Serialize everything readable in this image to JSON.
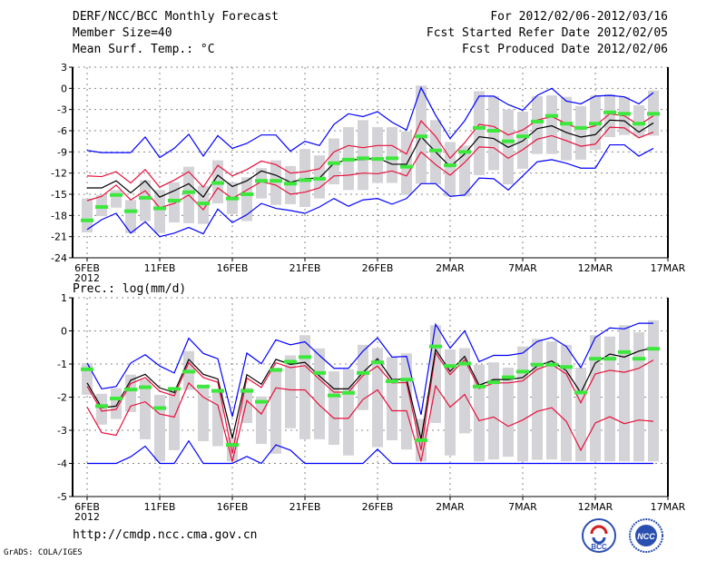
{
  "header": {
    "title": "DERF/NCC/BCC Monthly Forecast",
    "member_size": "Member Size=40",
    "variable": "Mean Surf. Temp.: °C",
    "period": "For 2012/02/06-2012/03/16",
    "started": "Fcst Started Refer Date 2012/02/05",
    "produced": "Fcst Produced Date 2012/02/06"
  },
  "footer": {
    "url": "http://cmdp.ncc.cma.gov.cn",
    "credit": "GrADS: COLA/IGES",
    "logos": [
      "BCC",
      "NCC"
    ]
  },
  "colors": {
    "mean": "#000000",
    "spread": "#e8103c",
    "extreme": "#0000ff",
    "obs": "#3ce83c",
    "box": "#d4d4d8"
  },
  "chart_data": [
    {
      "type": "line",
      "title": "Mean Surf. Temp.: °C",
      "xlabel": "",
      "ylabel": "°C",
      "ylim": [
        -24,
        3
      ],
      "yticks": [
        3,
        0,
        -3,
        -6,
        -9,
        -12,
        -15,
        -18,
        -21,
        -24
      ],
      "x_tick_labels": [
        "6FEB",
        "11FEB",
        "16FEB",
        "21FEB",
        "26FEB",
        "2MAR",
        "7MAR",
        "12MAR",
        "17MAR"
      ],
      "x_year_label": "2012",
      "x_range_days": [
        0,
        40
      ],
      "grid": true,
      "series": {
        "mean": [
          -14.1,
          -14.1,
          -13.1,
          -14.8,
          -13.1,
          -15.4,
          -14.5,
          -13.5,
          -15.4,
          -12.3,
          -13.9,
          -13.1,
          -11.7,
          -12.3,
          -13.3,
          -12.8,
          -12.7,
          -10.6,
          -10.1,
          -10.1,
          -9.85,
          -10.75,
          -10.75,
          -6.85,
          -9.0,
          -11.1,
          -9.3,
          -6.85,
          -7.1,
          -8.35,
          -7.45,
          -5.7,
          -5.3,
          -6.25,
          -6.9,
          -6.55,
          -4.5,
          -4.6,
          -6.2,
          -4.9
        ],
        "upper": [
          -12.4,
          -12.5,
          -11.8,
          -13.4,
          -11.5,
          -14.0,
          -13.0,
          -11.8,
          -14.0,
          -10.9,
          -12.4,
          -11.5,
          -10.3,
          -10.8,
          -12.0,
          -11.8,
          -11.4,
          -9.0,
          -8.1,
          -8.4,
          -8.1,
          -8.1,
          -9.3,
          -4.6,
          -6.8,
          -9.9,
          -7.7,
          -5.1,
          -5.4,
          -6.6,
          -5.9,
          -4.5,
          -4.0,
          -5.0,
          -5.8,
          -5.3,
          -3.6,
          -3.9,
          -5.2,
          -3.9
        ],
        "lower": [
          -15.9,
          -15.3,
          -13.7,
          -15.8,
          -14.5,
          -16.9,
          -16.3,
          -15.1,
          -17.2,
          -14.1,
          -15.6,
          -14.4,
          -13.2,
          -13.7,
          -15.0,
          -14.7,
          -14.1,
          -12.4,
          -12.3,
          -12.0,
          -12.1,
          -11.7,
          -12.4,
          -9.0,
          -10.8,
          -12.3,
          -10.5,
          -8.3,
          -8.4,
          -9.9,
          -8.7,
          -7.2,
          -6.7,
          -7.4,
          -8.2,
          -7.9,
          -5.5,
          -5.6,
          -7.0,
          -6.2
        ],
        "max": [
          -8.8,
          -9.1,
          -9.1,
          -9.1,
          -6.9,
          -9.8,
          -8.5,
          -6.5,
          -9.6,
          -6.7,
          -8.5,
          -7.8,
          -6.6,
          -6.6,
          -8.9,
          -7.5,
          -8.1,
          -5.1,
          -3.6,
          -4.0,
          -3.3,
          -4.8,
          -5.9,
          0.1,
          -3.8,
          -7.1,
          -4.6,
          -1.1,
          -1.1,
          -2.3,
          -3.1,
          -1.0,
          0.0,
          -1.8,
          -2.2,
          -1.1,
          -1.0,
          -1.2,
          -2.2,
          -0.6
        ],
        "min": [
          -20.0,
          -18.6,
          -17.7,
          -20.5,
          -18.9,
          -21.0,
          -20.5,
          -19.7,
          -20.6,
          -17.1,
          -19.0,
          -17.9,
          -16.3,
          -17.0,
          -17.3,
          -17.7,
          -16.8,
          -15.6,
          -16.7,
          -15.8,
          -15.6,
          -16.4,
          -15.6,
          -13.5,
          -13.5,
          -15.3,
          -15.1,
          -12.7,
          -12.8,
          -14.4,
          -12.4,
          -10.4,
          -10.1,
          -10.6,
          -11.3,
          -11.3,
          -8.0,
          -8.0,
          -9.6,
          -8.5
        ],
        "obs": [
          -18.7,
          -16.8,
          -15.1,
          -17.4,
          -15.5,
          -17.0,
          -15.9,
          -14.7,
          -16.3,
          -13.4,
          -15.6,
          -15.0,
          -13.1,
          -13.1,
          -13.5,
          -13.0,
          -12.8,
          -10.6,
          -10.1,
          -9.9,
          -10.0,
          -9.9,
          -11.1,
          -6.8,
          -8.8,
          -10.9,
          -9.0,
          -5.6,
          -6.0,
          -7.5,
          -6.8,
          -4.7,
          -3.9,
          -5.0,
          -5.6,
          -5.0,
          -3.4,
          -3.6,
          -5.0,
          -3.6
        ],
        "box_high": [
          -15.6,
          -15.1,
          -14.4,
          -15.8,
          -13.0,
          -14.4,
          -13.3,
          -11.1,
          -13.8,
          -10.2,
          -13.3,
          -12.6,
          -11.3,
          -10.2,
          -11.0,
          -8.6,
          -9.5,
          -7.1,
          -5.5,
          -4.5,
          -5.5,
          -5.5,
          -6.1,
          0.4,
          -4.5,
          -7.6,
          -8.1,
          -0.4,
          -1.1,
          -3.0,
          -3.3,
          -1.1,
          -1.0,
          -1.2,
          -2.5,
          -1.0,
          -0.8,
          -1.2,
          -2.4,
          -0.3
        ],
        "box_low": [
          -20.4,
          -18.1,
          -16.9,
          -20.5,
          -18.8,
          -20.5,
          -19.0,
          -19.1,
          -19.2,
          -16.3,
          -17.8,
          -18.8,
          -15.6,
          -16.5,
          -16.4,
          -16.8,
          -15.6,
          -13.6,
          -14.4,
          -14.4,
          -13.4,
          -13.4,
          -15.1,
          -13.5,
          -13.6,
          -15.3,
          -15.3,
          -12.3,
          -11.6,
          -13.6,
          -11.4,
          -9.3,
          -9.3,
          -10.2,
          -10.1,
          -8.7,
          -6.9,
          -6.6,
          -6.8,
          -6.7
        ]
      }
    },
    {
      "type": "line",
      "title": "Prec.: log(mm/d)",
      "xlabel": "",
      "ylabel": "log(mm/d)",
      "ylim": [
        -5,
        1
      ],
      "yticks": [
        1,
        0,
        -1,
        -2,
        -3,
        -4,
        -5
      ],
      "x_tick_labels": [
        "6FEB",
        "11FEB",
        "16FEB",
        "21FEB",
        "26FEB",
        "2MAR",
        "7MAR",
        "12MAR",
        "17MAR"
      ],
      "x_year_label": "2012",
      "x_range_days": [
        0,
        40
      ],
      "grid": true,
      "series": {
        "mean": [
          -1.57,
          -2.32,
          -2.27,
          -1.49,
          -1.31,
          -1.72,
          -1.86,
          -0.86,
          -1.31,
          -1.45,
          -3.24,
          -1.32,
          -1.61,
          -0.86,
          -1.01,
          -0.95,
          -1.36,
          -1.75,
          -1.75,
          -1.25,
          -0.84,
          -1.47,
          -1.46,
          -3.27,
          -0.56,
          -1.22,
          -0.77,
          -1.64,
          -1.47,
          -1.47,
          -1.41,
          -1.06,
          -0.91,
          -1.2,
          -1.87,
          -0.97,
          -0.7,
          -0.79,
          -0.61,
          -0.5
        ],
        "upper": [
          -1.67,
          -2.42,
          -2.37,
          -1.59,
          -1.41,
          -1.82,
          -1.96,
          -0.96,
          -1.41,
          -1.55,
          -3.7,
          -1.42,
          -1.71,
          -0.96,
          -1.11,
          -1.05,
          -1.46,
          -1.85,
          -1.85,
          -1.35,
          -1.06,
          -1.57,
          -1.56,
          -3.6,
          -0.66,
          -1.32,
          -0.87,
          -1.74,
          -1.57,
          -1.57,
          -1.51,
          -1.16,
          -1.01,
          -1.3,
          -2.17,
          -1.3,
          -1.19,
          -1.25,
          -1.13,
          -0.88
        ],
        "lower": [
          -2.3,
          -3.07,
          -3.15,
          -2.27,
          -2.14,
          -2.51,
          -2.6,
          -1.57,
          -2.0,
          -2.24,
          -3.94,
          -2.1,
          -2.51,
          -1.72,
          -1.78,
          -1.78,
          -2.24,
          -2.64,
          -2.64,
          -2.07,
          -1.78,
          -2.41,
          -2.41,
          -3.94,
          -1.66,
          -2.3,
          -1.92,
          -2.71,
          -2.6,
          -2.88,
          -2.69,
          -2.43,
          -2.32,
          -2.73,
          -3.6,
          -2.78,
          -2.59,
          -2.8,
          -2.69,
          -2.73
        ],
        "max": [
          -0.97,
          -1.75,
          -1.68,
          -0.97,
          -0.72,
          -1.06,
          -1.27,
          -0.22,
          -0.68,
          -0.84,
          -2.59,
          -0.67,
          -0.99,
          -0.27,
          -0.42,
          -0.33,
          -0.74,
          -1.13,
          -1.13,
          -0.61,
          -0.21,
          -0.79,
          -0.77,
          -2.53,
          0.2,
          -0.52,
          0.0,
          -0.93,
          -0.74,
          -0.74,
          -0.67,
          -0.32,
          -0.2,
          -0.47,
          -1.11,
          -0.2,
          0.09,
          0.06,
          0.23,
          0.23
        ],
        "min": [
          -4,
          -4,
          -4,
          -3.8,
          -3.48,
          -4,
          -4,
          -3.32,
          -4,
          -4,
          -4,
          -3.79,
          -4,
          -3.44,
          -3.6,
          -4,
          -4,
          -4,
          -4,
          -4,
          -3.57,
          -4,
          -4,
          -4,
          -4,
          -4,
          -4,
          -4,
          -4,
          -4,
          -4,
          -4,
          -4,
          -4,
          -4,
          -4,
          -4,
          -4,
          -4,
          -4
        ],
        "obs": [
          -1.16,
          -2.27,
          -2.04,
          -1.77,
          -1.7,
          -2.33,
          -1.75,
          -1.23,
          -1.68,
          -1.81,
          -3.44,
          -1.81,
          -2.14,
          -1.18,
          -0.93,
          -0.79,
          -1.27,
          -1.95,
          -1.87,
          -1.27,
          -0.95,
          -1.52,
          -1.47,
          -3.3,
          -0.47,
          -1.06,
          -0.99,
          -1.68,
          -1.55,
          -1.4,
          -1.23,
          -1.02,
          -1.02,
          -1.09,
          -1.86,
          -0.84,
          -0.84,
          -0.64,
          -0.84,
          -0.54
        ],
        "box_high": [
          -0.97,
          -1.9,
          -1.73,
          -1.32,
          -1.47,
          -1.93,
          -1.72,
          -0.61,
          -1.63,
          -1.75,
          -3.21,
          -1.72,
          -1.98,
          -1.11,
          -0.74,
          -0.13,
          -0.53,
          -1.22,
          -1.16,
          -0.42,
          -0.52,
          -0.79,
          -0.68,
          -2.66,
          0.17,
          -0.56,
          -0.52,
          -1.02,
          -0.95,
          -1.11,
          -0.47,
          -0.24,
          -0.32,
          -0.42,
          -1.11,
          -0.13,
          -0.17,
          0.17,
          -0.04,
          0.32
        ],
        "box_low": [
          -1.93,
          -2.83,
          -2.66,
          -2.45,
          -3.27,
          -3.94,
          -3.6,
          -1.78,
          -3.33,
          -3.48,
          -3.94,
          -2.78,
          -3.41,
          -3.71,
          -2.94,
          -3.27,
          -3.27,
          -3.44,
          -3.76,
          -2.39,
          -3.51,
          -3.3,
          -3.58,
          -3.94,
          -2.78,
          -3.76,
          -3.09,
          -3.94,
          -3.88,
          -3.8,
          -3.94,
          -3.89,
          -3.88,
          -3.94,
          -3.94,
          -3.94,
          -3.94,
          -3.94,
          -3.94,
          -3.94
        ]
      }
    }
  ]
}
